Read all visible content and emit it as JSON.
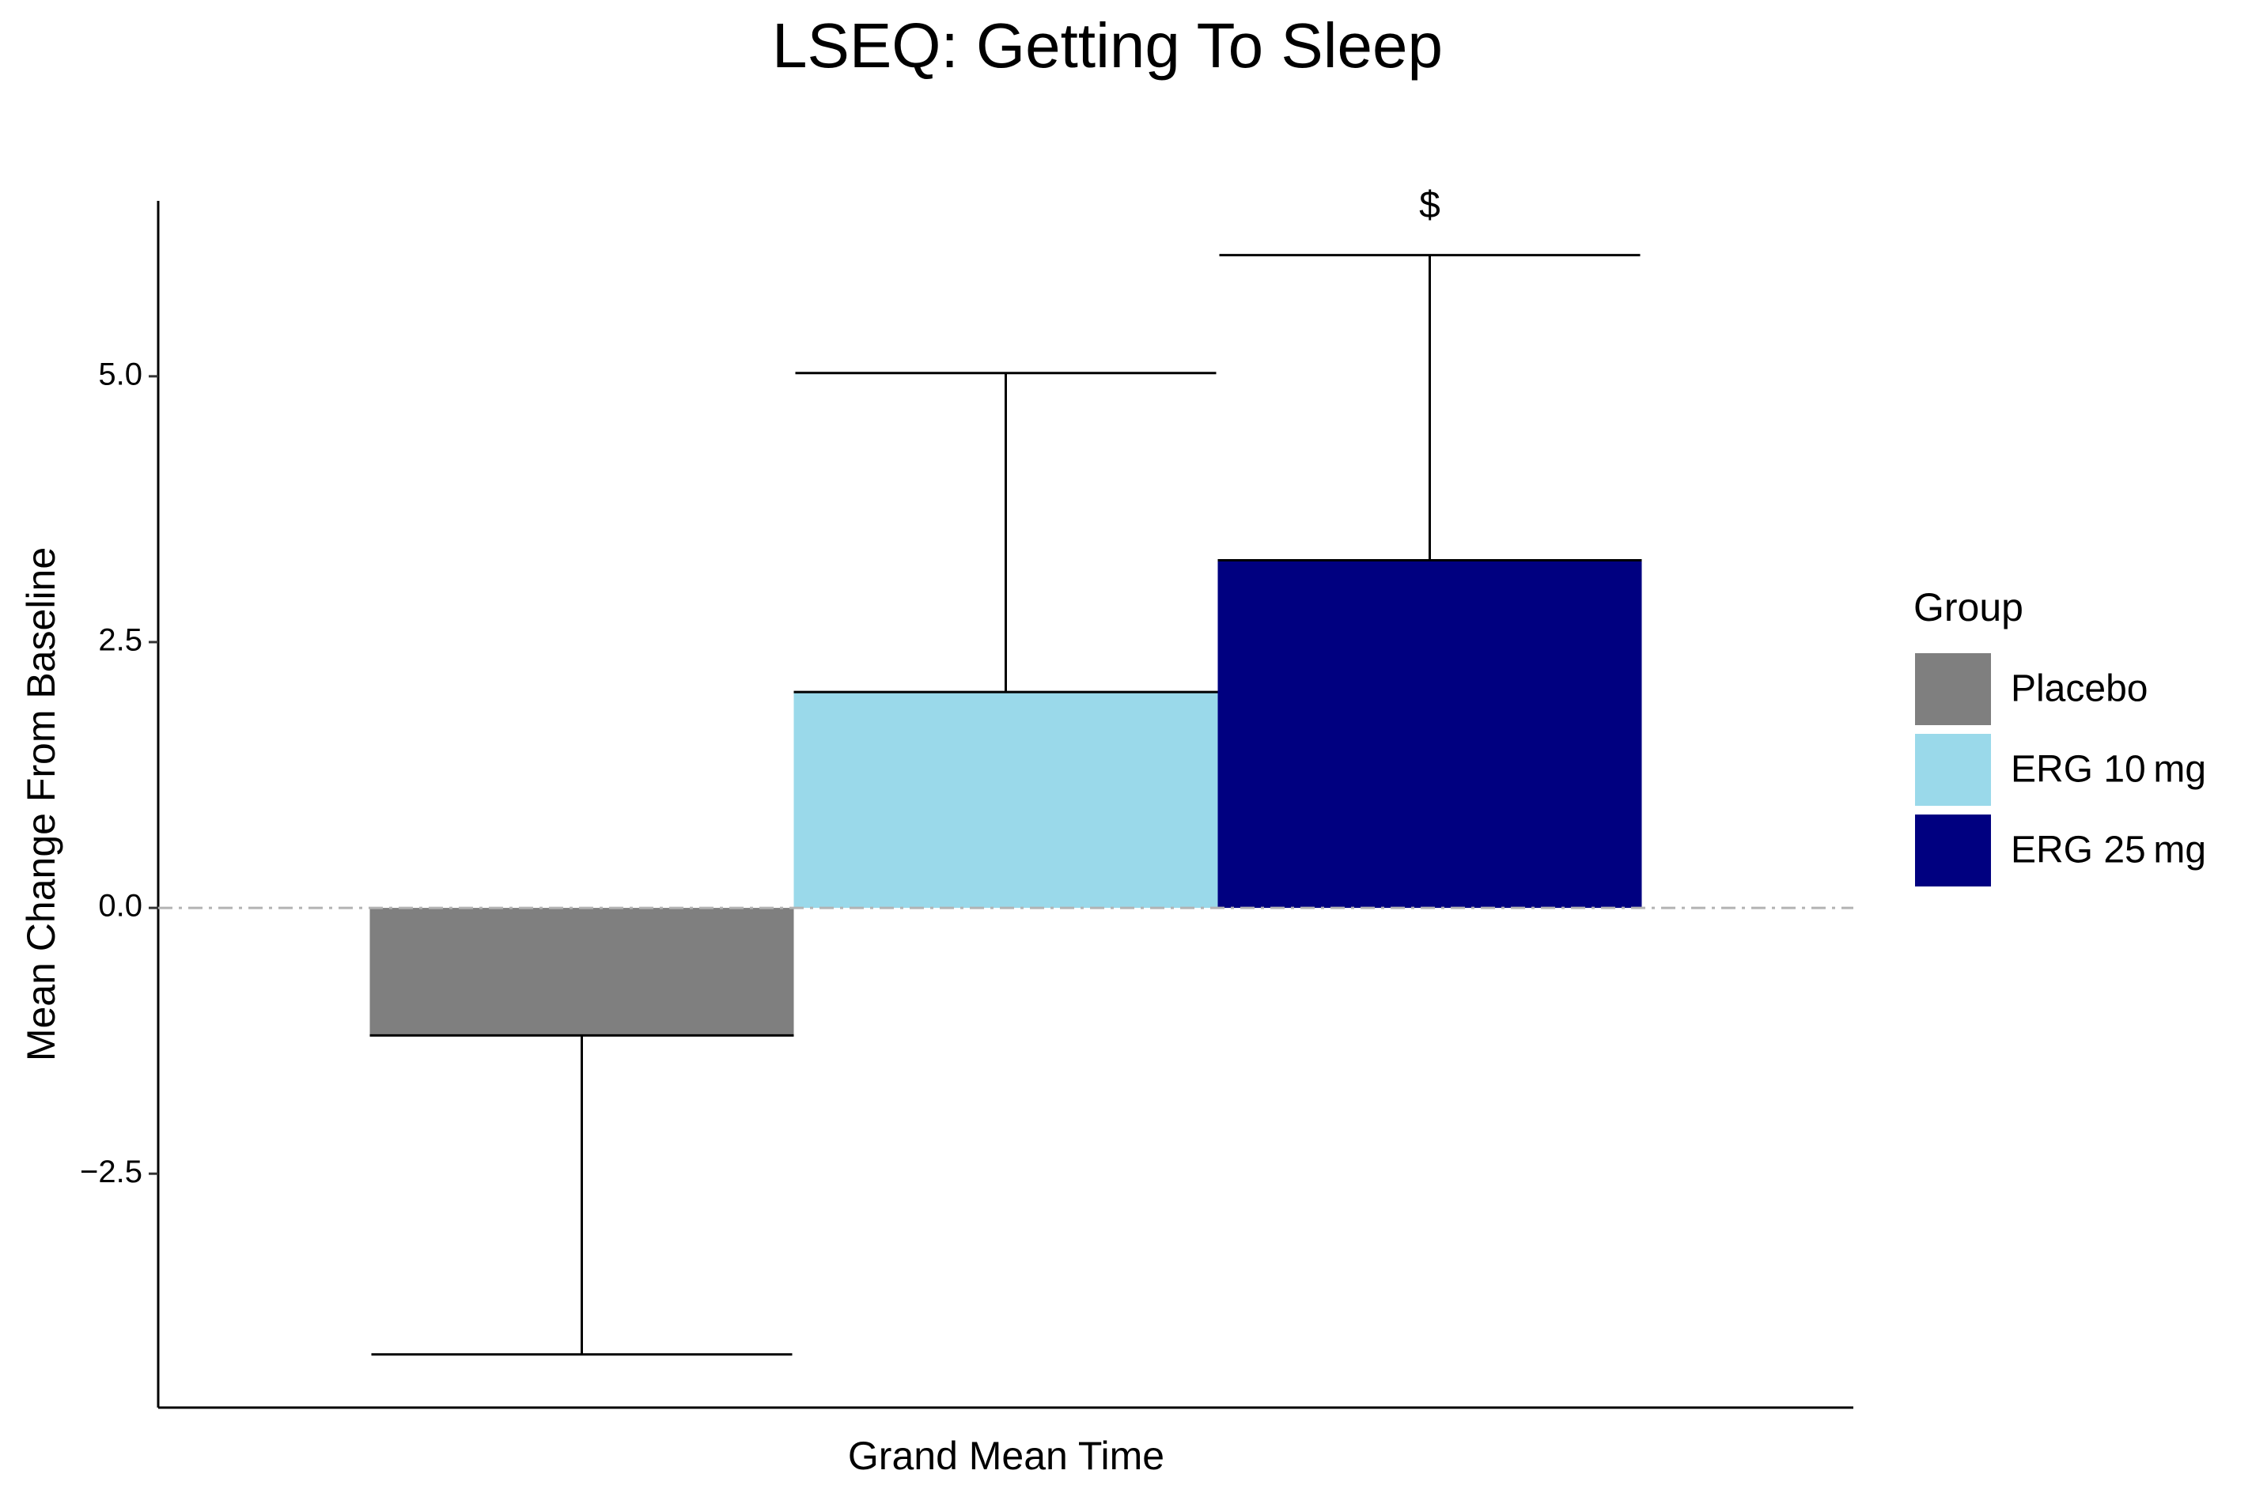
{
  "chart_data": {
    "type": "bar",
    "title": "LSEQ: Getting To Sleep",
    "x_label": "Grand Mean Time",
    "y_label": "Mean Change From Baseline",
    "categories": [
      null
    ],
    "series": [
      {
        "name": "Placebo",
        "color": "#7f7f7f",
        "values": [
          -1.2
        ],
        "errors": [
          3.0
        ]
      },
      {
        "name": "ERG 10 mg",
        "color": "#9ad9ea",
        "values": [
          2.03
        ],
        "errors": [
          3.0
        ]
      },
      {
        "name": "ERG 25 mg",
        "color": "#000080",
        "values": [
          3.27
        ],
        "errors": [
          2.87
        ],
        "annotation": "$"
      }
    ],
    "ylim": [
      -4.7,
      6.65
    ],
    "yticks": [
      {
        "value": -2.5,
        "label": "−2.5"
      },
      {
        "value": 0,
        "label": "0.0"
      },
      {
        "value": 2.5,
        "label": "2.5"
      },
      {
        "value": 5,
        "label": "5.0"
      }
    ],
    "reference_line": 0,
    "legend_title": "Group",
    "legend_position": "right",
    "grid": false
  }
}
